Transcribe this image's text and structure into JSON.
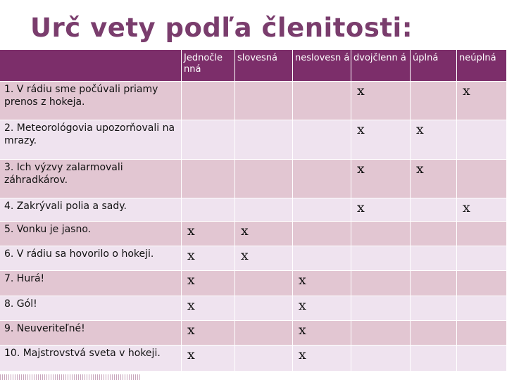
{
  "title": "Urč vety podľa členitosti:",
  "headers": [
    "",
    "Jednočle nná",
    "slovesná",
    "neslovesn á",
    "dvojčlenn á",
    "úplná",
    "neúplná"
  ],
  "rows": [
    {
      "label": "1. V rádiu sme počúvali priamy prenos z hokeja.",
      "marks": [
        "",
        "",
        "",
        "x",
        "",
        "x"
      ]
    },
    {
      "label": "2. Meteorológovia upozorňovali na mrazy.",
      "marks": [
        "",
        "",
        "",
        "x",
        "x",
        ""
      ]
    },
    {
      "label": "3. Ich výzvy zalarmovali záhradkárov.",
      "marks": [
        "",
        "",
        "",
        "x",
        "x",
        ""
      ]
    },
    {
      "label": "4. Zakrývali polia a sady.",
      "marks": [
        "",
        "",
        "",
        "x",
        "",
        "x"
      ]
    },
    {
      "label": "5. Vonku je jasno.",
      "marks": [
        "x",
        "x",
        "",
        "",
        "",
        ""
      ]
    },
    {
      "label": "6. V rádiu sa hovorilo o hokeji.",
      "marks": [
        "x",
        "x",
        "",
        "",
        "",
        ""
      ]
    },
    {
      "label": "7. Hurá!",
      "marks": [
        "x",
        "",
        "x",
        "",
        "",
        ""
      ]
    },
    {
      "label": "8. Gól!",
      "marks": [
        "x",
        "",
        "x",
        "",
        "",
        ""
      ]
    },
    {
      "label": "9. Neuveriteľné!",
      "marks": [
        "x",
        "",
        "x",
        "",
        "",
        ""
      ]
    },
    {
      "label": "10. Majstrovstvá sveta v hokeji.",
      "marks": [
        "x",
        "",
        "x",
        "",
        "",
        ""
      ]
    }
  ],
  "colors": {
    "header": "#7c2e6a",
    "row_a": "#e2c6d2",
    "row_b": "#efe3ef",
    "title": "#7a3d6d"
  }
}
